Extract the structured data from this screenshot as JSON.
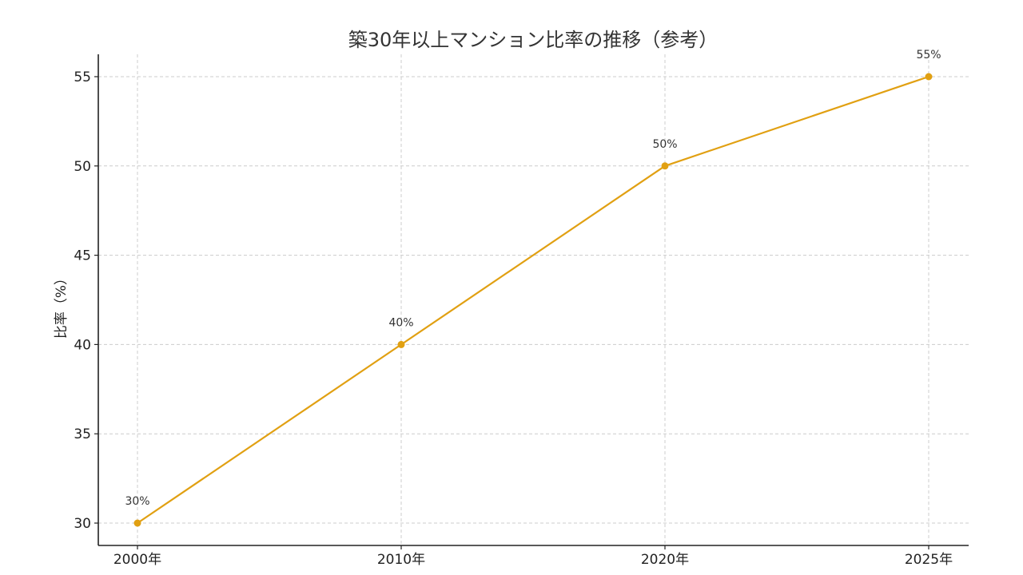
{
  "chart_data": {
    "type": "line",
    "title": "築30年以上マンション比率の推移（参考）",
    "xlabel": "",
    "ylabel": "比率（%）",
    "categories": [
      "2000年",
      "2010年",
      "2020年",
      "2025年"
    ],
    "values": [
      30,
      40,
      50,
      55
    ],
    "data_labels": [
      "30%",
      "40%",
      "50%",
      "55%"
    ],
    "ylim": [
      28.75,
      56.3
    ],
    "yticks": [
      30,
      35,
      40,
      45,
      50,
      55
    ],
    "grid": true,
    "legend": null,
    "line_color": "#E1A012"
  }
}
